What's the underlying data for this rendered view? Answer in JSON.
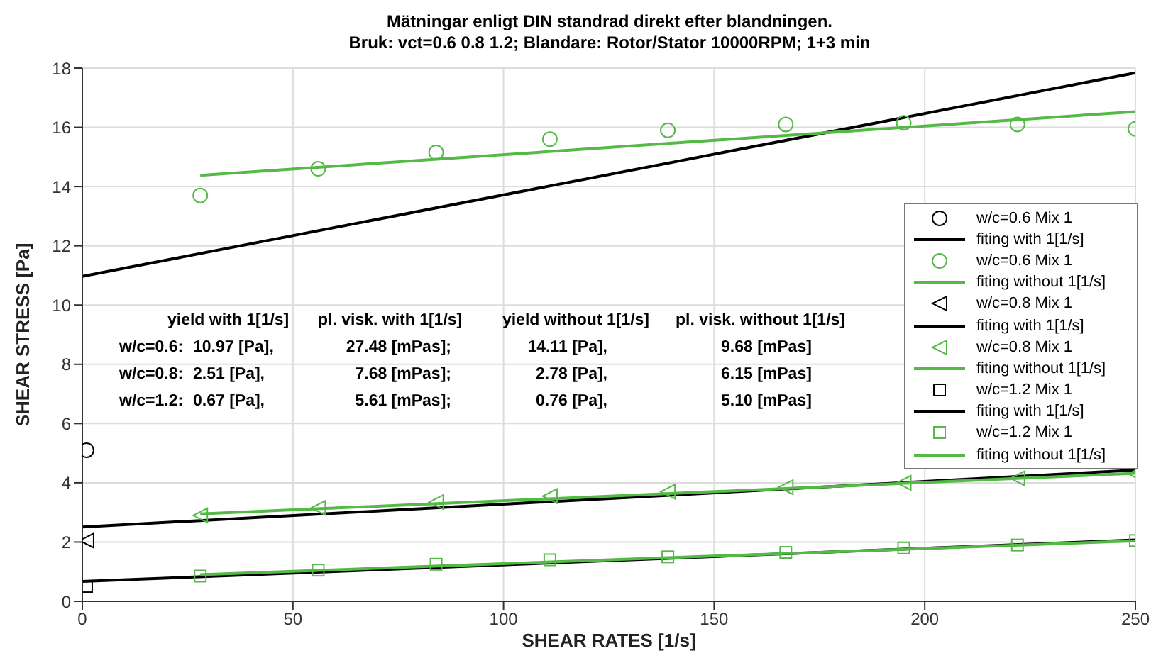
{
  "chart_data": {
    "type": "scatter",
    "title": "Mätningar enligt DIN standrad direkt efter blandningen.",
    "subtitle": "Bruk: vct=0.6 0.8 1.2; Blandare: Rotor/Stator 10000RPM; 1+3 min",
    "xlabel": "SHEAR RATES [1/s]",
    "ylabel": "SHEAR STRESS [Pa]",
    "xlim": [
      0,
      250
    ],
    "xticks": [
      0,
      50,
      100,
      150,
      200,
      250
    ],
    "ylim": [
      0,
      18
    ],
    "yticks": [
      0,
      2,
      4,
      6,
      8,
      10,
      12,
      14,
      16,
      18
    ],
    "grid": true,
    "legend": "right",
    "series": [
      {
        "name": "w/c=0.6 Mix 1",
        "marker": "circle",
        "color": "#000000",
        "x": [
          1
        ],
        "values": [
          5.1
        ]
      },
      {
        "name": "fiting with 1[1/s]",
        "type": "line",
        "marker": "none",
        "color": "#000000",
        "x": [
          0,
          250
        ],
        "values": [
          10.97,
          17.84
        ]
      },
      {
        "name": "w/c=0.6 Mix 1",
        "marker": "circle",
        "color": "#55b947",
        "x": [
          28,
          56,
          84,
          111,
          139,
          167,
          195,
          222,
          250
        ],
        "values": [
          13.7,
          14.6,
          15.15,
          15.6,
          15.9,
          16.1,
          16.15,
          16.1,
          15.95
        ]
      },
      {
        "name": "fiting without 1[1/s]",
        "type": "line",
        "marker": "none",
        "color": "#55b947",
        "x": [
          28,
          250
        ],
        "values": [
          14.38,
          16.53
        ]
      },
      {
        "name": "w/c=0.8 Mix 1",
        "marker": "triangle",
        "color": "#000000",
        "x": [
          1
        ],
        "values": [
          2.05
        ]
      },
      {
        "name": "fiting with 1[1/s]",
        "type": "line",
        "marker": "none",
        "color": "#000000",
        "x": [
          0,
          250
        ],
        "values": [
          2.51,
          4.43
        ]
      },
      {
        "name": "w/c=0.8 Mix 1",
        "marker": "triangle",
        "color": "#55b947",
        "x": [
          28,
          56,
          84,
          111,
          139,
          167,
          195,
          222,
          250
        ],
        "values": [
          2.9,
          3.15,
          3.35,
          3.55,
          3.7,
          3.85,
          4.0,
          4.15,
          4.3
        ]
      },
      {
        "name": "fiting without 1[1/s]",
        "type": "line",
        "marker": "none",
        "color": "#55b947",
        "x": [
          28,
          250
        ],
        "values": [
          2.95,
          4.32
        ]
      },
      {
        "name": "w/c=1.2 Mix 1",
        "marker": "square",
        "color": "#000000",
        "x": [
          1
        ],
        "values": [
          0.5
        ]
      },
      {
        "name": "fiting with 1[1/s]",
        "type": "line",
        "marker": "none",
        "color": "#000000",
        "x": [
          0,
          250
        ],
        "values": [
          0.67,
          2.07
        ]
      },
      {
        "name": "w/c=1.2 Mix 1",
        "marker": "square",
        "color": "#55b947",
        "x": [
          28,
          56,
          84,
          111,
          139,
          167,
          195,
          222,
          250
        ],
        "values": [
          0.85,
          1.05,
          1.25,
          1.4,
          1.5,
          1.65,
          1.8,
          1.9,
          2.05
        ]
      },
      {
        "name": "fiting without 1[1/s]",
        "type": "line",
        "marker": "none",
        "color": "#55b947",
        "x": [
          28,
          250
        ],
        "values": [
          0.9,
          2.04
        ]
      }
    ],
    "annotations": [
      "yield with 1[1/s]",
      "pl. visk. with 1[1/s]",
      "yield without 1[1/s]",
      "pl. visk. without 1[1/s]",
      "w/c=0.6:",
      "10.97 [Pa],",
      "27.48 [mPas];",
      "14.11 [Pa],",
      "9.68 [mPas]",
      "w/c=0.8:",
      "2.51 [Pa],",
      "7.68 [mPas];",
      "2.78 [Pa],",
      "6.15 [mPas]",
      "w/c=1.2:",
      "0.67 [Pa],",
      "5.61 [mPas];",
      "0.76 [Pa],",
      "5.10 [mPas]"
    ]
  }
}
